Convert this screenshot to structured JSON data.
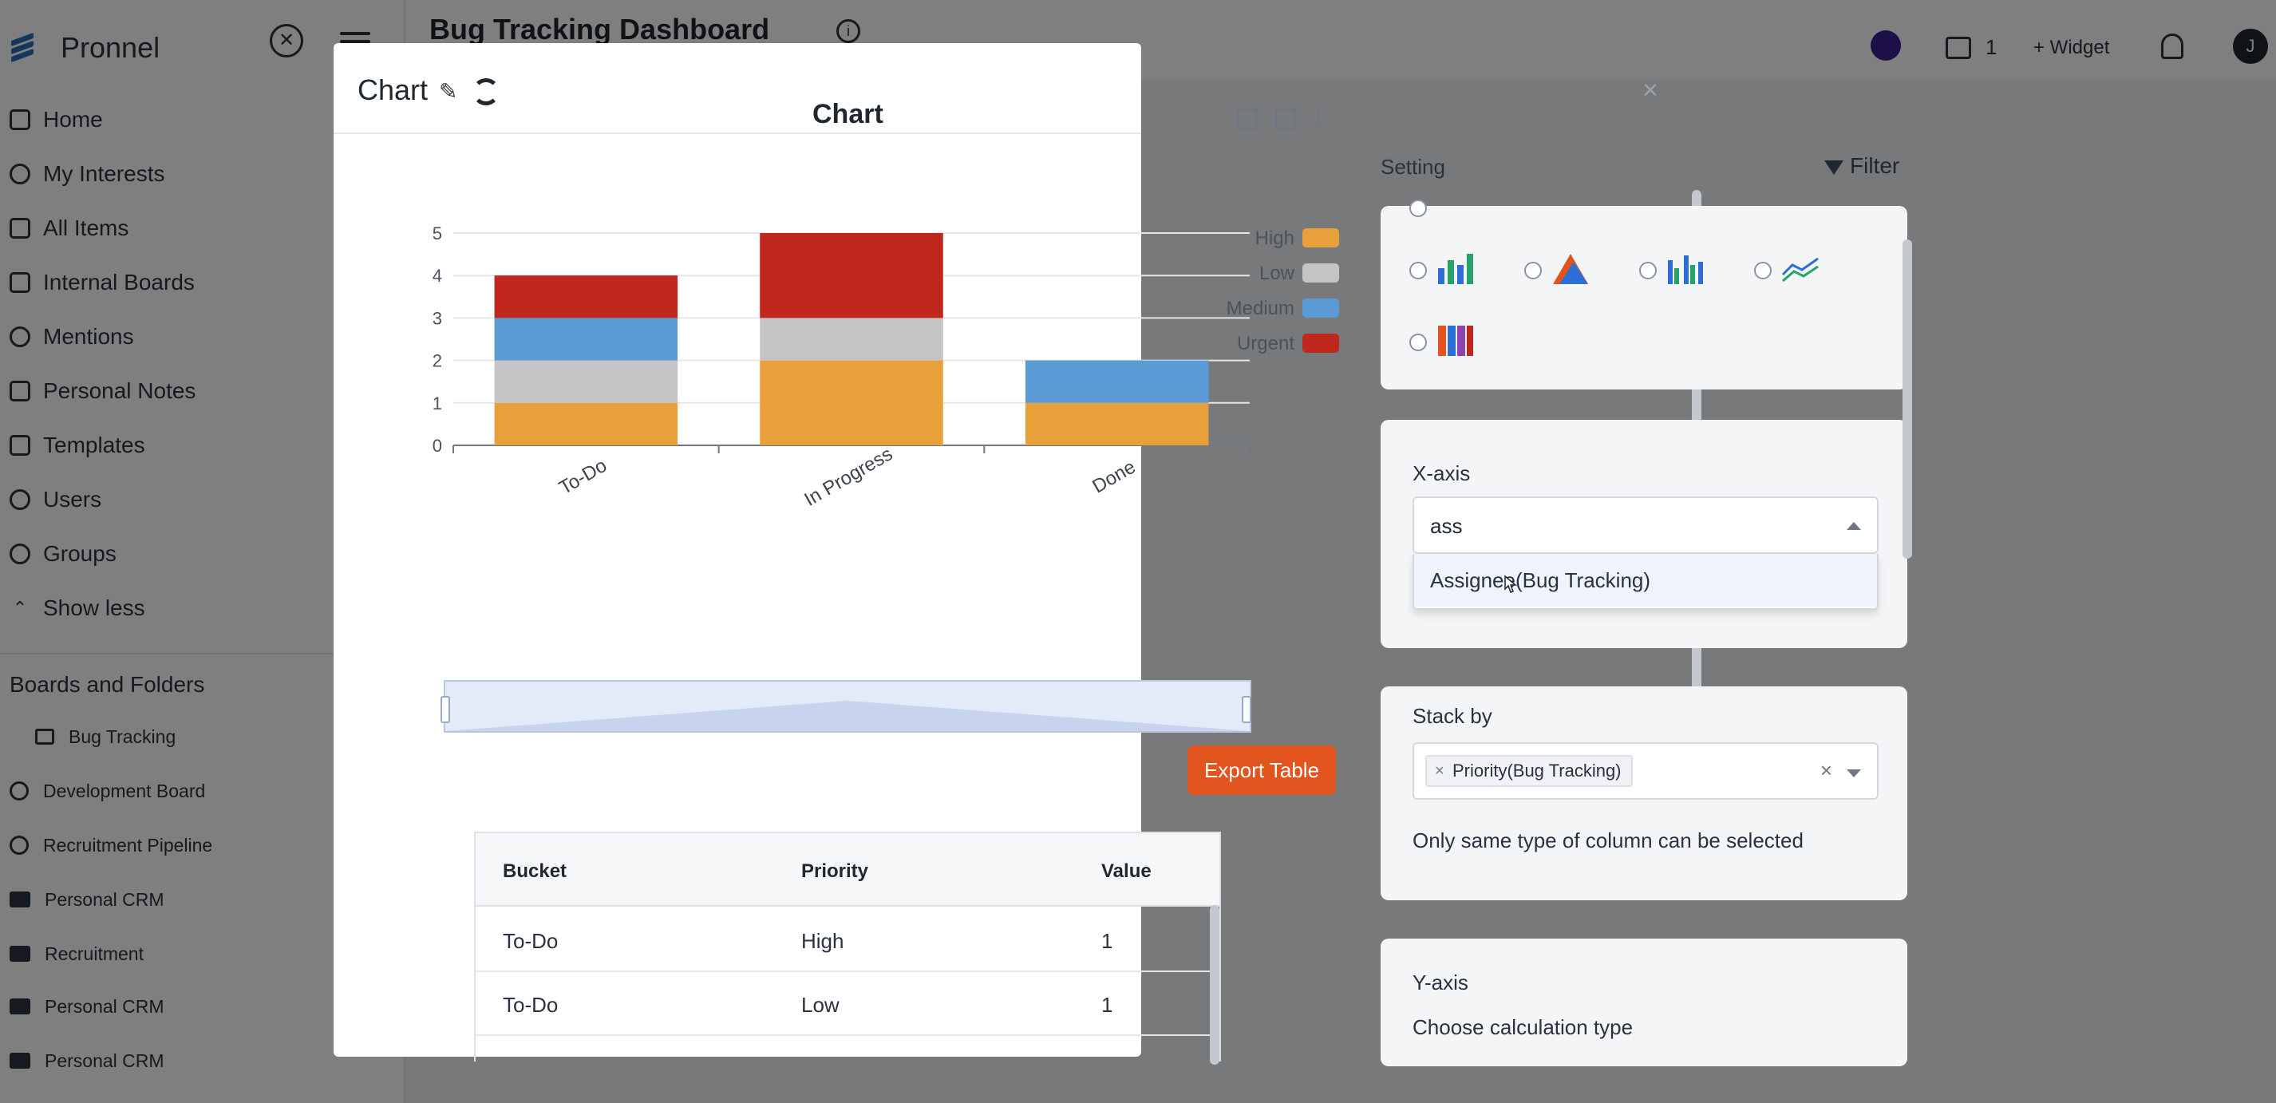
{
  "app": {
    "brand": "Pronnel",
    "nav": [
      {
        "label": "Home",
        "icon": "home-icon"
      },
      {
        "label": "My Interests",
        "icon": "interests-icon"
      },
      {
        "label": "All Items",
        "icon": "tag-icon"
      },
      {
        "label": "Internal Boards",
        "icon": "grid-icon"
      },
      {
        "label": "Mentions",
        "icon": "at-icon"
      },
      {
        "label": "Personal Notes",
        "icon": "notes-icon"
      },
      {
        "label": "Templates",
        "icon": "template-icon"
      },
      {
        "label": "Users",
        "icon": "user-icon"
      },
      {
        "label": "Groups",
        "icon": "group-icon"
      },
      {
        "label": "Show less",
        "icon": "chevron-up-icon"
      }
    ],
    "section_title": "Boards and Folders",
    "boards": [
      {
        "label": "Bug Tracking",
        "icon": "briefcase-icon"
      },
      {
        "label": "Development Board",
        "icon": "board-icon"
      },
      {
        "label": "Recruitment Pipeline",
        "icon": "board-icon"
      },
      {
        "label": "Personal CRM",
        "icon": "folder-icon"
      },
      {
        "label": "Recruitment",
        "icon": "folder-icon"
      },
      {
        "label": "Personal CRM",
        "icon": "folder-icon"
      },
      {
        "label": "Personal CRM",
        "icon": "folder-icon"
      }
    ]
  },
  "topbar": {
    "dashboard_title": "Bug Tracking Dashboard",
    "widget_count": "1",
    "add_widget_label": "+ Widget",
    "user_initial": "J"
  },
  "modal": {
    "title": "Chart",
    "close_label": "×",
    "export_label": "Export Table",
    "table": {
      "headers": [
        "Bucket",
        "Priority",
        "Value"
      ],
      "rows": [
        [
          "To-Do",
          "High",
          "1"
        ],
        [
          "To-Do",
          "Low",
          "1"
        ]
      ]
    },
    "settings": {
      "label": "Setting",
      "filter_label": "Filter",
      "x_axis": {
        "label": "X-axis",
        "input_value": "ass",
        "option": "Assignee(Bug Tracking)"
      },
      "stack_by": {
        "label": "Stack by",
        "tag": "Priority(Bug Tracking)",
        "hint": "Only same type of column can be selected"
      },
      "y_axis": {
        "label": "Y-axis",
        "sub_label": "Choose calculation type"
      }
    }
  },
  "chart_data": {
    "type": "bar",
    "stacked": true,
    "title": "Chart",
    "categories": [
      "To-Do",
      "In Progress",
      "Done"
    ],
    "series": [
      {
        "name": "High",
        "color": "#e8a13a",
        "values": [
          1,
          2,
          1
        ]
      },
      {
        "name": "Low",
        "color": "#c4c4c4",
        "values": [
          1,
          1,
          0
        ]
      },
      {
        "name": "Medium",
        "color": "#5b9bd5",
        "values": [
          1,
          0,
          1
        ]
      },
      {
        "name": "Urgent",
        "color": "#c0281d",
        "values": [
          1,
          2,
          0
        ]
      }
    ],
    "ylim": [
      0,
      5
    ],
    "yticks": [
      "0",
      "1",
      "2",
      "3",
      "4",
      "5"
    ],
    "legend_position": "top-right",
    "grid": true
  },
  "colors": {
    "accent": "#e2541e",
    "radio_selected": "#2e6fd6"
  }
}
